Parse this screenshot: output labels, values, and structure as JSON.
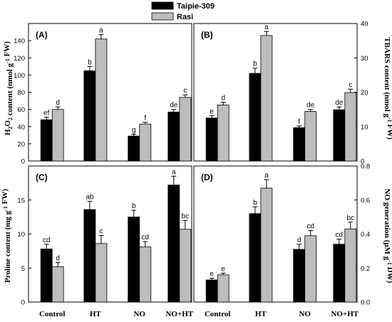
{
  "legend": [
    {
      "name": "Taipie-309",
      "color": "#000000"
    },
    {
      "name": "Rasi",
      "color": "#bdbdbd"
    }
  ],
  "chart_data": [
    {
      "type": "bar",
      "panel_label": "(A)",
      "categories": [
        "Control",
        "HT",
        "NO",
        "NO+HT"
      ],
      "ylabel": "H2O2 content (nmol g-1 FW)",
      "ylim": [
        0,
        160
      ],
      "yticks": [
        0,
        20,
        40,
        60,
        80,
        100,
        120,
        140
      ],
      "y_axis_side": "left",
      "show_xticklabels": false,
      "series": [
        {
          "name": "Taipie-309",
          "values": [
            48,
            105,
            29,
            57
          ],
          "errors": [
            3,
            5,
            2,
            3
          ],
          "letters": [
            "ef",
            "b",
            "g",
            "de"
          ]
        },
        {
          "name": "Rasi",
          "values": [
            60,
            142,
            43,
            74
          ],
          "errors": [
            3,
            5,
            2,
            3
          ],
          "letters": [
            "d",
            "a",
            "f",
            "c"
          ]
        }
      ]
    },
    {
      "type": "bar",
      "panel_label": "(B)",
      "categories": [
        "Control",
        "HT",
        "NO",
        "NO+HT"
      ],
      "ylabel": "TBARS content (nmol g-1 FW)",
      "ylim": [
        0,
        40
      ],
      "yticks": [
        0,
        10,
        20,
        30,
        40
      ],
      "y_axis_side": "right",
      "show_xticklabels": false,
      "series": [
        {
          "name": "Taipie-309",
          "values": [
            12.5,
            25.5,
            9.7,
            14.9
          ],
          "errors": [
            0.7,
            1.5,
            0.5,
            0.8
          ],
          "letters": [
            "e",
            "b",
            "f",
            "de"
          ]
        },
        {
          "name": "Rasi",
          "values": [
            16.3,
            36.5,
            14.4,
            19.9
          ],
          "errors": [
            0.8,
            1.2,
            0.6,
            1.0
          ],
          "letters": [
            "d",
            "a",
            "de",
            "c"
          ]
        }
      ]
    },
    {
      "type": "bar",
      "panel_label": "(C)",
      "categories": [
        "Control",
        "HT",
        "NO",
        "NO+HT"
      ],
      "ylabel": "Proline content (mg g-1 FW)",
      "ylim": [
        0,
        20
      ],
      "yticks": [
        0,
        5,
        10,
        15
      ],
      "y_axis_side": "left",
      "show_xticklabels": true,
      "series": [
        {
          "name": "Taipie-309",
          "values": [
            7.8,
            13.6,
            12.5,
            17.2
          ],
          "errors": [
            0.7,
            1.2,
            1.0,
            1.3
          ],
          "letters": [
            "cd",
            "ab",
            "b",
            "a"
          ]
        },
        {
          "name": "Rasi",
          "values": [
            5.2,
            8.6,
            8.1,
            10.7
          ],
          "errors": [
            0.6,
            1.2,
            0.8,
            1.3
          ],
          "letters": [
            "d",
            "c",
            "cd",
            "bc"
          ]
        }
      ]
    },
    {
      "type": "bar",
      "panel_label": "(D)",
      "categories": [
        "Control",
        "HT",
        "NO",
        "NO+HT"
      ],
      "ylabel": "NO generation (μM g-1 DW)",
      "ylim": [
        0,
        0.8
      ],
      "yticks": [
        0.0,
        0.2,
        0.4,
        0.6,
        0.8
      ],
      "y_axis_side": "right",
      "show_xticklabels": true,
      "series": [
        {
          "name": "Taipie-309",
          "values": [
            0.13,
            0.52,
            0.31,
            0.34
          ],
          "errors": [
            0.01,
            0.04,
            0.03,
            0.03
          ],
          "letters": [
            "e",
            "b",
            "d",
            "cd"
          ]
        },
        {
          "name": "Rasi",
          "values": [
            0.16,
            0.67,
            0.39,
            0.43
          ],
          "errors": [
            0.01,
            0.05,
            0.03,
            0.04
          ],
          "letters": [
            "e",
            "a",
            "cd",
            "bc"
          ]
        }
      ]
    }
  ]
}
